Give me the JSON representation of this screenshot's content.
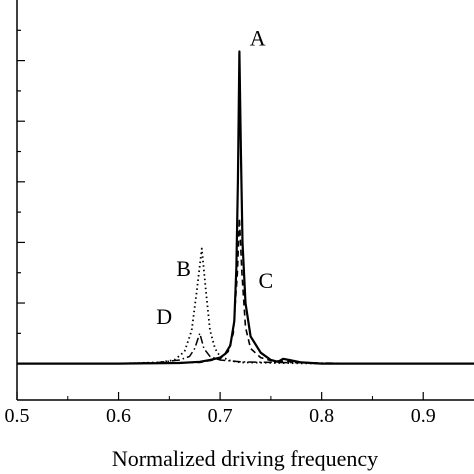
{
  "chart_data": {
    "type": "line",
    "xlabel": "Normalized driving frequency",
    "xlim": [
      0.5,
      0.95
    ],
    "ylim": [
      -0.6,
      6.0
    ],
    "x_ticks": [
      0.5,
      0.6,
      0.7,
      0.8,
      0.9
    ],
    "x_tick_labels": [
      "0.5",
      "0.6",
      "0.7",
      "0.8",
      "0.9"
    ],
    "y_ticks": [
      0,
      0.5,
      1,
      1.5,
      2,
      2.5,
      3,
      3.5,
      4,
      4.5,
      5,
      5.5
    ],
    "series": [
      {
        "name": "A",
        "style": "solid",
        "points": [
          [
            0.5,
            0.0
          ],
          [
            0.6,
            0.0
          ],
          [
            0.66,
            0.01
          ],
          [
            0.68,
            0.03
          ],
          [
            0.69,
            0.06
          ],
          [
            0.7,
            0.1
          ],
          [
            0.705,
            0.16
          ],
          [
            0.71,
            0.3
          ],
          [
            0.714,
            0.7
          ],
          [
            0.716,
            1.6
          ],
          [
            0.7175,
            3.0
          ],
          [
            0.719,
            5.15
          ],
          [
            0.7205,
            3.5
          ],
          [
            0.722,
            2.0
          ],
          [
            0.725,
            1.0
          ],
          [
            0.73,
            0.45
          ],
          [
            0.74,
            0.18
          ],
          [
            0.75,
            0.06
          ],
          [
            0.757,
            0.03
          ],
          [
            0.762,
            0.08
          ],
          [
            0.768,
            0.06
          ],
          [
            0.78,
            0.02
          ],
          [
            0.8,
            0.0
          ],
          [
            0.95,
            0.0
          ]
        ]
      },
      {
        "name": "B",
        "style": "dotted",
        "points": [
          [
            0.5,
            0.0
          ],
          [
            0.6,
            0.0
          ],
          [
            0.64,
            0.02
          ],
          [
            0.655,
            0.06
          ],
          [
            0.665,
            0.2
          ],
          [
            0.672,
            0.55
          ],
          [
            0.677,
            1.2
          ],
          [
            0.682,
            1.9
          ],
          [
            0.686,
            1.2
          ],
          [
            0.69,
            0.55
          ],
          [
            0.695,
            0.25
          ],
          [
            0.7,
            0.12
          ],
          [
            0.71,
            0.05
          ],
          [
            0.72,
            0.02
          ],
          [
            0.8,
            0.0
          ],
          [
            0.95,
            0.0
          ]
        ]
      },
      {
        "name": "C",
        "style": "dashed",
        "points": [
          [
            0.5,
            0.0
          ],
          [
            0.6,
            0.0
          ],
          [
            0.68,
            0.02
          ],
          [
            0.7,
            0.08
          ],
          [
            0.708,
            0.2
          ],
          [
            0.713,
            0.5
          ],
          [
            0.717,
            1.5
          ],
          [
            0.719,
            2.4
          ],
          [
            0.7215,
            1.5
          ],
          [
            0.725,
            0.6
          ],
          [
            0.73,
            0.25
          ],
          [
            0.74,
            0.1
          ],
          [
            0.75,
            0.05
          ],
          [
            0.8,
            0.0
          ],
          [
            0.95,
            0.0
          ]
        ]
      },
      {
        "name": "D",
        "style": "dashdot",
        "points": [
          [
            0.5,
            0.0
          ],
          [
            0.6,
            0.0
          ],
          [
            0.64,
            0.02
          ],
          [
            0.66,
            0.06
          ],
          [
            0.67,
            0.12
          ],
          [
            0.675,
            0.25
          ],
          [
            0.68,
            0.5
          ],
          [
            0.684,
            0.25
          ],
          [
            0.69,
            0.12
          ],
          [
            0.7,
            0.06
          ],
          [
            0.72,
            0.03
          ],
          [
            0.75,
            0.02
          ],
          [
            0.85,
            0.0
          ],
          [
            0.95,
            0.0
          ]
        ]
      }
    ],
    "annotations": [
      {
        "text": "A",
        "x": 0.737,
        "y": 5.25
      },
      {
        "text": "B",
        "x": 0.664,
        "y": 1.45
      },
      {
        "text": "C",
        "x": 0.745,
        "y": 1.25
      },
      {
        "text": "D",
        "x": 0.645,
        "y": 0.65
      }
    ]
  }
}
